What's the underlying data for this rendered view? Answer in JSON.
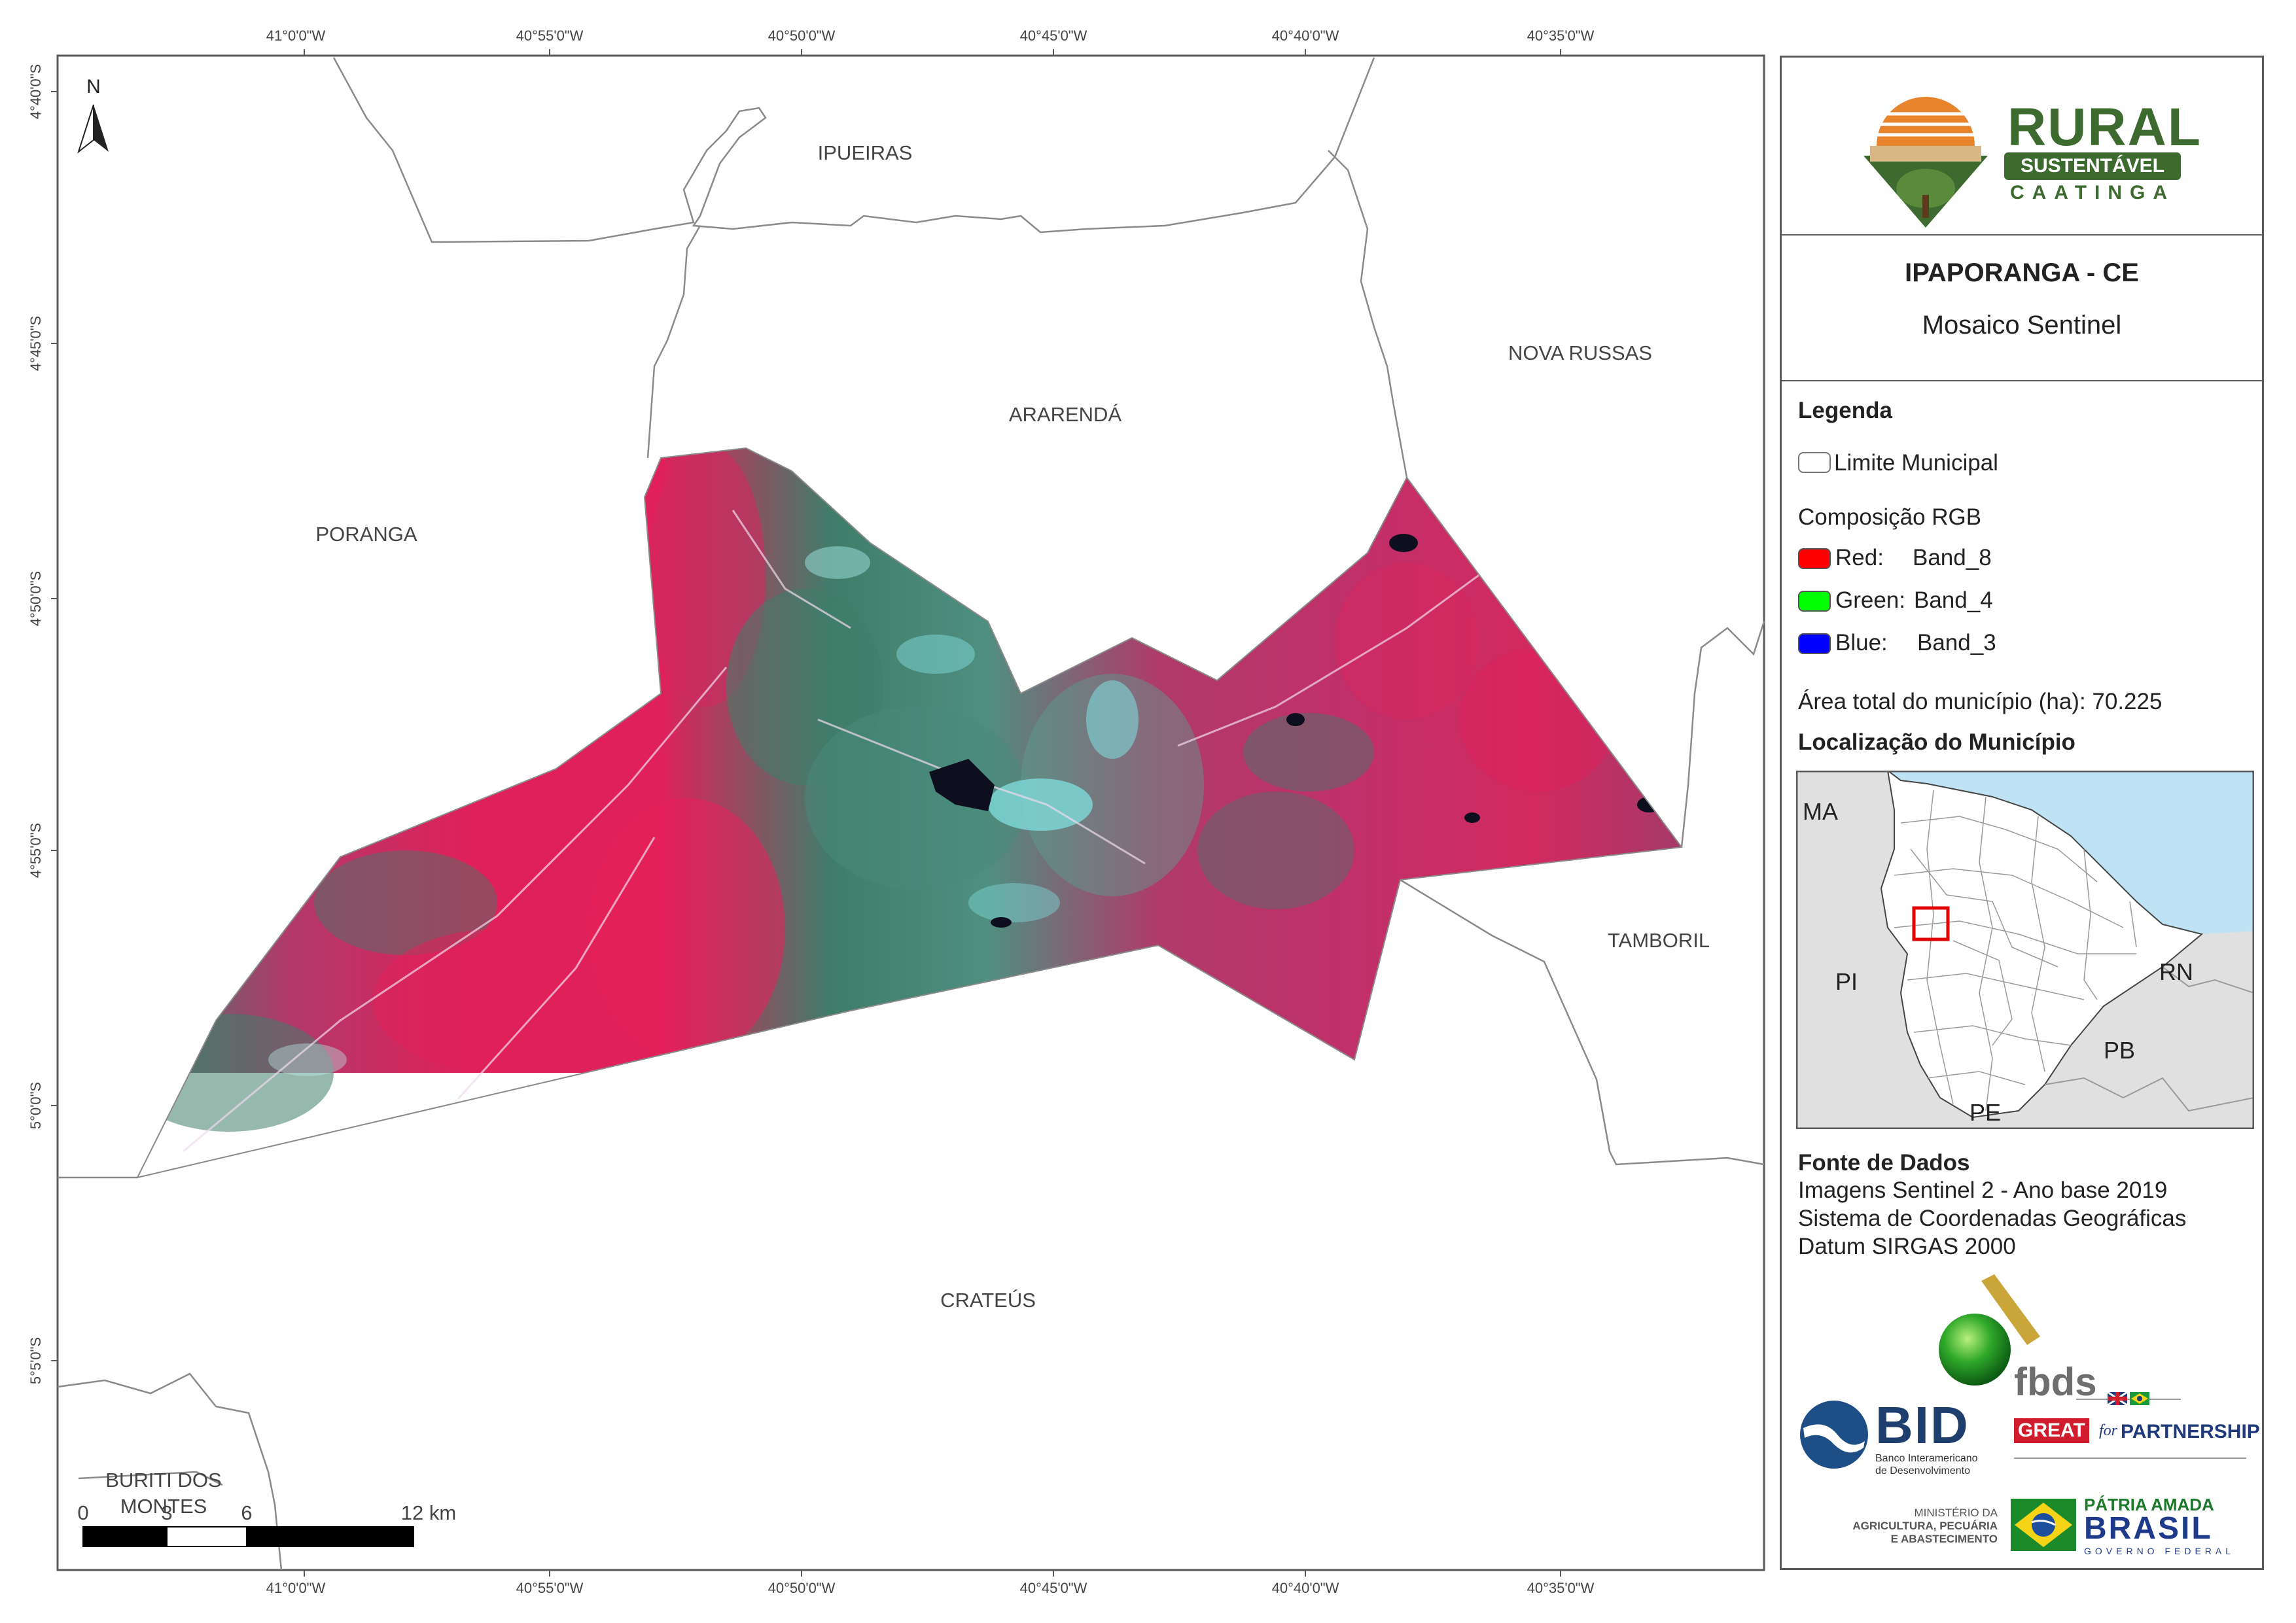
{
  "map": {
    "lon_ticks": [
      "41°0'0\"W",
      "40°55'0\"W",
      "40°50'0\"W",
      "40°45'0\"W",
      "40°40'0\"W",
      "40°35'0\"W"
    ],
    "lat_ticks": [
      "4°40'0\"S",
      "4°45'0\"S",
      "4°50'0\"S",
      "4°55'0\"S",
      "5°0'0\"S",
      "5°5'0\"S"
    ],
    "north_arrow": "N",
    "places": {
      "ipueiras": "IPUEIRAS",
      "ararenda": "ARARENDÁ",
      "nova_russas": "NOVA RUSSAS",
      "poranga": "PORANGA",
      "tamboril": "TAMBORIL",
      "crateus": "CRATEÚS",
      "buriti_1": "BURITI DOS",
      "buriti_2": "MONTES"
    },
    "scale_bar": {
      "labels": [
        "0",
        "3",
        "6",
        "12 km"
      ],
      "unit": "km"
    },
    "colors": {
      "frame": "#5a5a5a",
      "boundary": "#8a8a8a",
      "vegetation_red": "#e0205a",
      "vegetation_mixed": "#b03a6a",
      "dry_green": "#3f7d6a",
      "urban_cyan": "#7fd9d9",
      "water": "#0d0f1e",
      "state_ce_fill": "#ffffff",
      "neighbor_fill": "#e0e0e0",
      "ocean_fill": "#bfe3f5"
    }
  },
  "logo": {
    "line1": "RURAL",
    "line2": "SUSTENTÁVEL",
    "line3": "CAATINGA",
    "colors": {
      "green": "#3d6b2f",
      "sun": "#e8842c"
    }
  },
  "title": {
    "municipality": "IPAPORANGA - CE",
    "subtitle": "Mosaico Sentinel"
  },
  "legend": {
    "heading": "Legenda",
    "boundary_label": "Limite Municipal",
    "rgb_heading": "Composição RGB",
    "bands": [
      {
        "channel": "Red:",
        "band": "Band_8",
        "color": "#ff0000"
      },
      {
        "channel": "Green:",
        "band": "Band_4",
        "color": "#00ff00"
      },
      {
        "channel": "Blue:",
        "band": "Band_3",
        "color": "#0000ff"
      }
    ],
    "area_text": "Área total do município (ha): 70.225",
    "location_heading": "Localização do Município"
  },
  "inset": {
    "labels": {
      "ma": "MA",
      "pi": "PI",
      "rn": "RN",
      "pb": "PB",
      "pe": "PE"
    }
  },
  "sources": {
    "heading": "Fonte de Dados",
    "lines": [
      "Imagens Sentinel 2 - Ano base 2019",
      "Sistema de Coordenadas Geográficas",
      "Datum SIRGAS 2000"
    ]
  },
  "partners": {
    "fbds": "fbds",
    "bid": "BID",
    "bid_sub1": "Banco Interamericano",
    "bid_sub2": "de Desenvolvimento",
    "great": "GREAT",
    "great_for": "for",
    "great_partnership": "PARTNERSHIP",
    "ministry1": "MINISTÉRIO DA",
    "ministry2": "AGRICULTURA, PECUÁRIA",
    "ministry3": "E ABASTECIMENTO",
    "patria": "PÁTRIA AMADA",
    "brasil": "BRASIL",
    "gov": "GOVERNO FEDERAL"
  }
}
